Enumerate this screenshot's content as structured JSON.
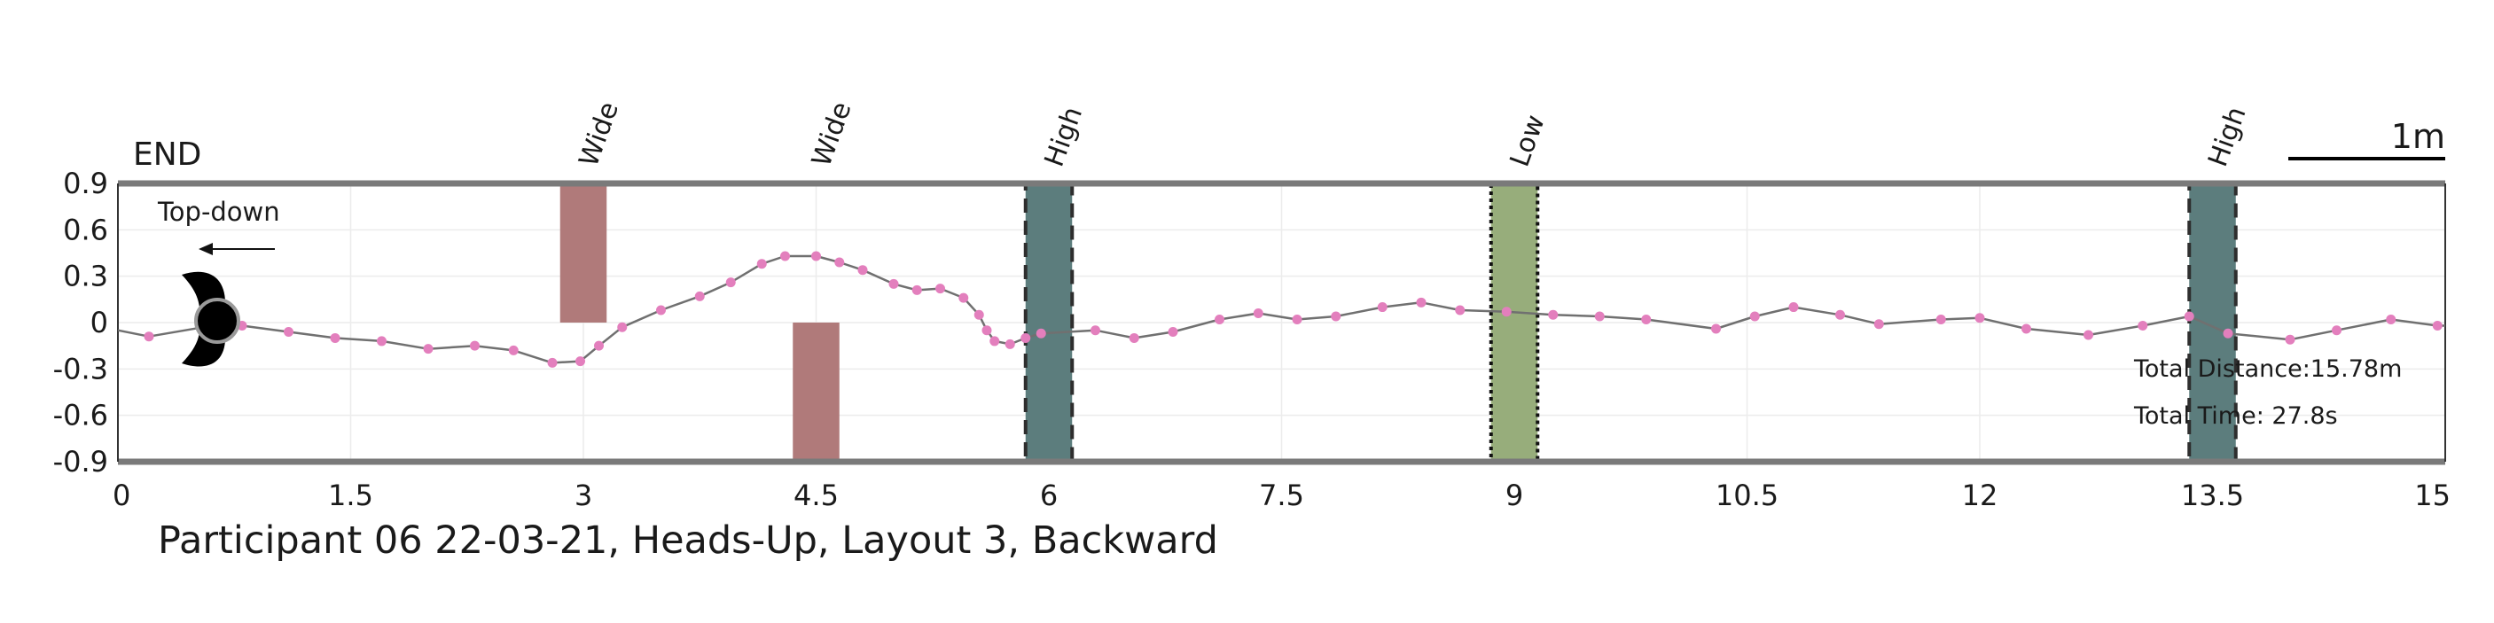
{
  "chart_data": {
    "type": "line",
    "title": "Participant 06 22-03-21, Heads-Up, Layout 3, Backward",
    "xlabel": "",
    "ylabel": "",
    "xlim": [
      0,
      15
    ],
    "ylim": [
      -0.9,
      0.9
    ],
    "x_ticks": [
      "0",
      "1.5",
      "3",
      "4.5",
      "6",
      "7.5",
      "9",
      "10.5",
      "12",
      "13.5",
      "15"
    ],
    "y_ticks": [
      "0.9",
      "0.6",
      "0.3",
      "0",
      "-0.3",
      "-0.6",
      "-0.9"
    ],
    "grid": true,
    "series": [
      {
        "color": "#707070",
        "marker_color": "#e37fbd",
        "x": [
          0.0,
          0.2,
          0.55,
          0.8,
          1.1,
          1.4,
          1.7,
          2.0,
          2.3,
          2.55,
          2.8,
          2.98,
          3.1,
          3.25,
          3.5,
          3.75,
          3.95,
          4.15,
          4.3,
          4.5,
          4.65,
          4.8,
          5.0,
          5.15,
          5.3,
          5.45,
          5.55,
          5.6,
          5.65,
          5.75,
          5.85,
          5.95,
          6.3,
          6.55,
          6.8,
          7.1,
          7.35,
          7.6,
          7.85,
          8.15,
          8.4,
          8.65,
          8.95,
          9.25,
          9.55,
          9.85,
          10.3,
          10.55,
          10.8,
          11.1,
          11.35,
          11.75,
          12.0,
          12.3,
          12.7,
          13.05,
          13.35,
          13.6,
          14.0,
          14.3,
          14.65,
          14.95,
          15.0
        ],
        "y": [
          -0.05,
          -0.09,
          -0.03,
          -0.02,
          -0.06,
          -0.1,
          -0.12,
          -0.17,
          -0.15,
          -0.18,
          -0.26,
          -0.25,
          -0.15,
          -0.03,
          0.08,
          0.17,
          0.26,
          0.38,
          0.43,
          0.43,
          0.39,
          0.34,
          0.25,
          0.21,
          0.22,
          0.16,
          0.05,
          -0.05,
          -0.12,
          -0.14,
          -0.1,
          -0.07,
          -0.05,
          -0.1,
          -0.06,
          0.02,
          0.06,
          0.02,
          0.04,
          0.1,
          0.13,
          0.08,
          0.07,
          0.05,
          0.04,
          0.02,
          -0.04,
          0.04,
          0.1,
          0.05,
          -0.01,
          0.02,
          0.03,
          -0.04,
          -0.08,
          -0.02,
          0.04,
          -0.07,
          -0.11,
          -0.05,
          0.02,
          -0.02,
          -0.02
        ]
      }
    ],
    "regions": [
      {
        "label": "Wide",
        "x0": 2.85,
        "x1": 3.15,
        "y0": 0.0,
        "y1": 0.9,
        "fill": "#b07a7a",
        "edge": "none"
      },
      {
        "label": "Wide",
        "x0": 4.35,
        "x1": 4.65,
        "y0": -0.9,
        "y1": 0.0,
        "fill": "#b07a7a",
        "edge": "none"
      },
      {
        "label": "High",
        "x0": 5.85,
        "x1": 6.15,
        "y0": -0.9,
        "y1": 0.9,
        "fill": "#5c7d7d",
        "edge": "dashed"
      },
      {
        "label": "Low",
        "x0": 8.85,
        "x1": 9.15,
        "y0": -0.9,
        "y1": 0.9,
        "fill": "#97ad7b",
        "edge": "dotted"
      },
      {
        "label": "High",
        "x0": 13.35,
        "x1": 13.65,
        "y0": -0.9,
        "y1": 0.9,
        "fill": "#5c7d7d",
        "edge": "dashed"
      }
    ],
    "annotations": {
      "end_label": "END",
      "topdown_label": "Top-down",
      "scale_label": "1m",
      "total_distance": "Total Distance:15.78m",
      "total_time": "Total Time: 27.8s"
    }
  }
}
